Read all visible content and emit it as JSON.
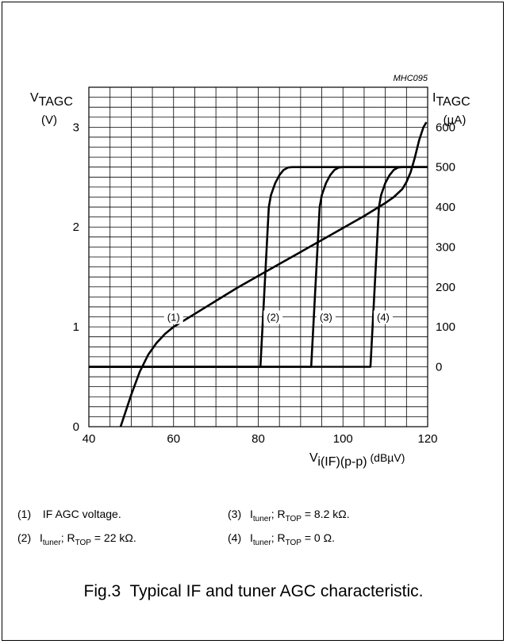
{
  "chart_data": {
    "type": "line",
    "id_label": "MHC095",
    "x_axis": {
      "label_main": "V",
      "label_sub": "i(IF)(p-p)",
      "label_unit": "(dBµV)",
      "range": [
        40,
        120
      ],
      "ticks": [
        40,
        60,
        80,
        100,
        120
      ],
      "minor_step": 5
    },
    "y_left": {
      "label_main": "V",
      "label_sub": "TAGC",
      "label_unit": "(V)",
      "range": [
        0,
        3.4
      ],
      "ticks": [
        0,
        1,
        2,
        3
      ],
      "minor_step": 0.1
    },
    "y_right": {
      "label_main": "I",
      "label_sub": "TAGC",
      "label_unit": "(µA)",
      "zero_on_left": 0.6,
      "per_100": 0.4,
      "ticks": [
        0,
        100,
        200,
        300,
        400,
        500,
        600
      ]
    },
    "series": [
      {
        "marker": "(1)",
        "axis": "left",
        "points": [
          [
            47.5,
            0
          ],
          [
            50,
            0.32
          ],
          [
            52,
            0.55
          ],
          [
            54,
            0.72
          ],
          [
            56,
            0.84
          ],
          [
            58,
            0.93
          ],
          [
            60,
            1.0
          ],
          [
            65,
            1.13
          ],
          [
            70,
            1.26
          ],
          [
            75,
            1.39
          ],
          [
            80,
            1.51
          ],
          [
            85,
            1.63
          ],
          [
            90,
            1.75
          ],
          [
            95,
            1.87
          ],
          [
            100,
            1.99
          ],
          [
            105,
            2.11
          ],
          [
            110,
            2.24
          ],
          [
            112,
            2.3
          ],
          [
            114,
            2.38
          ],
          [
            115,
            2.45
          ],
          [
            116,
            2.55
          ],
          [
            117,
            2.7
          ],
          [
            118,
            2.87
          ],
          [
            119,
            3.0
          ],
          [
            119.7,
            3.05
          ]
        ]
      },
      {
        "marker": "(2)",
        "axis": "right",
        "points": [
          [
            40,
            0
          ],
          [
            80.5,
            0
          ],
          [
            82.5,
            400
          ],
          [
            83,
            430
          ],
          [
            84,
            460
          ],
          [
            85,
            480
          ],
          [
            86,
            493
          ],
          [
            87,
            499
          ],
          [
            88,
            500
          ],
          [
            120,
            500
          ]
        ]
      },
      {
        "marker": "(3)",
        "axis": "right",
        "points": [
          [
            40,
            0
          ],
          [
            92.5,
            0
          ],
          [
            94.5,
            400
          ],
          [
            95,
            430
          ],
          [
            96,
            460
          ],
          [
            97,
            480
          ],
          [
            98,
            493
          ],
          [
            99,
            499
          ],
          [
            100,
            500
          ],
          [
            120,
            500
          ]
        ]
      },
      {
        "marker": "(4)",
        "axis": "right",
        "points": [
          [
            40,
            0
          ],
          [
            106.5,
            0
          ],
          [
            108.5,
            400
          ],
          [
            109,
            430
          ],
          [
            110,
            460
          ],
          [
            111,
            480
          ],
          [
            112,
            493
          ],
          [
            113,
            499
          ],
          [
            114,
            500
          ],
          [
            120,
            500
          ]
        ]
      }
    ],
    "label_positions": [
      {
        "text": "(1)",
        "x": 60,
        "y": 1.1
      },
      {
        "text": "(2)",
        "x": 83.5,
        "y": 1.1
      },
      {
        "text": "(3)",
        "x": 96,
        "y": 1.1
      },
      {
        "text": "(4)",
        "x": 109.5,
        "y": 1.1
      }
    ]
  },
  "legend": [
    {
      "num": "(1)",
      "text": "IF AGC voltage."
    },
    {
      "num": "(3)",
      "main": "I",
      "sub": "tuner",
      "mid": "; R",
      "sub2": "TOP",
      "tail": " = 8.2 kΩ."
    },
    {
      "num": "(2)",
      "main": "I",
      "sub": "tuner",
      "mid": "; R",
      "sub2": "TOP",
      "tail": " = 22 kΩ."
    },
    {
      "num": "(4)",
      "main": "I",
      "sub": "tuner",
      "mid": "; R",
      "sub2": "TOP",
      "tail": " = 0 Ω."
    }
  ],
  "caption": "Fig.3  Typical IF and tuner AGC characteristic."
}
